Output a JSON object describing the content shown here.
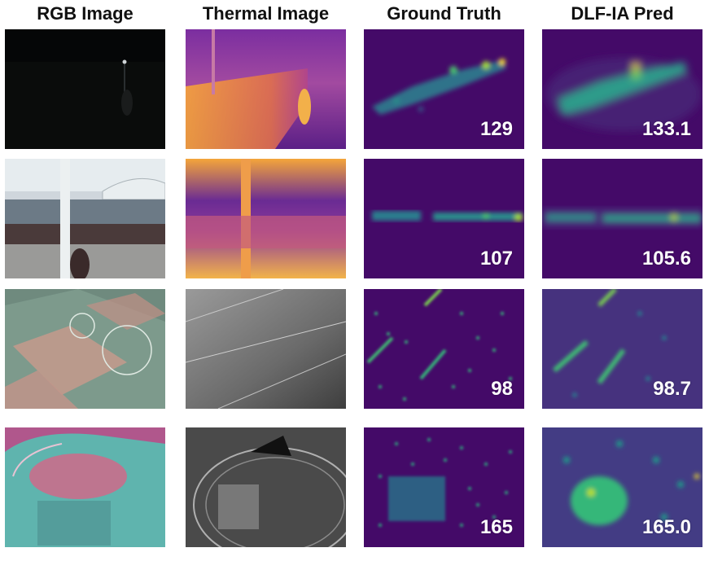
{
  "headers": {
    "rgb": "RGB Image",
    "thermal": "Thermal Image",
    "gt": "Ground Truth",
    "pred": "DLF-IA Pred"
  },
  "rows": [
    {
      "gt_count": "129",
      "pred_count": "133.1"
    },
    {
      "gt_count": "107",
      "pred_count": "105.6"
    },
    {
      "gt_count": "98",
      "pred_count": "98.7"
    },
    {
      "gt_count": "165",
      "pred_count": "165.0"
    }
  ],
  "colors": {
    "density_bg": "#440a68",
    "density_mid": "#21918c",
    "density_hi": "#fde725",
    "thermal_bg": "#3b0f70",
    "thermal_hot": "#fca636"
  }
}
